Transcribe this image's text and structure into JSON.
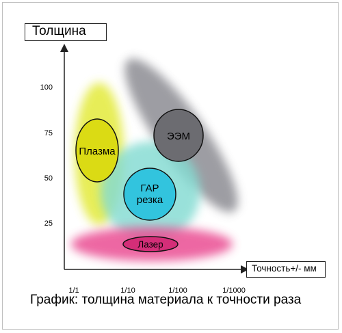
{
  "chart_data": {
    "type": "scatter",
    "title": "График: толщина материала к точности раза",
    "ylabel": "Толщина",
    "xlabel": "Точность+/- мм",
    "y_ticks": [
      "100",
      "75",
      "50",
      "25"
    ],
    "x_ticks": [
      "1/1",
      "1/10",
      "1/100",
      "1/1000"
    ],
    "series": [
      {
        "name": "ЭЭМ",
        "color": "#6e6e73",
        "halo_color": "#9a9aa1",
        "x": [
          0.0025,
          0.1
        ],
        "y": [
          15,
          105
        ]
      },
      {
        "name": "Плазма",
        "color": "#dede12",
        "halo_color": "#e9ef55",
        "x": [
          0.5,
          2
        ],
        "y": [
          15,
          110
        ]
      },
      {
        "name": "ГАР резка",
        "color": "#33c6df",
        "halo_color": "#8fddd6",
        "x": [
          0.03,
          0.3
        ],
        "y": [
          15,
          68
        ]
      },
      {
        "name": "Лазер",
        "color": "#d7307a",
        "halo_color": "#ee5f9e",
        "x": [
          0.005,
          1
        ],
        "y": [
          0,
          10
        ]
      }
    ]
  }
}
